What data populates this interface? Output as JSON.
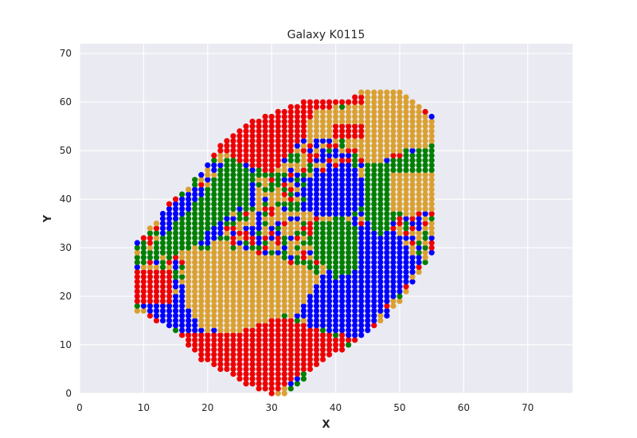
{
  "chart_data": {
    "type": "scatter",
    "title": "Galaxy K0115",
    "xlabel": "X",
    "ylabel": "Y",
    "xlim": [
      0,
      77
    ],
    "ylim": [
      0,
      72
    ],
    "xticks": [
      "0",
      "10",
      "20",
      "30",
      "40",
      "50",
      "60",
      "70"
    ],
    "yticks": [
      "0",
      "10",
      "20",
      "30",
      "40",
      "50",
      "60",
      "70"
    ],
    "grid": true,
    "marker": "circle",
    "colors": {
      "red": "#ee0000",
      "orange": "#daa030",
      "green": "#007f00",
      "blue": "#0000ff",
      "background": "#eaeaf2",
      "grid": "#ffffff"
    },
    "description_points": "Approximately 1,900 grid points (1-unit spacing) filling a rotated elongated galaxy outline; colored by region",
    "series": [
      {
        "color": "red",
        "regions": [
          {
            "poly": [
              [
                9,
                19
              ],
              [
                15,
                19
              ],
              [
                15,
                26
              ],
              [
                9,
                26
              ]
            ]
          },
          {
            "poly": [
              [
                16,
                13
              ],
              [
                25,
                13
              ],
              [
                32,
                16
              ],
              [
                36,
                14
              ],
              [
                40,
                12
              ],
              [
                43,
                11
              ],
              [
                41,
                9
              ],
              [
                36,
                5
              ],
              [
                30,
                0
              ],
              [
                24,
                3
              ],
              [
                18,
                7
              ],
              [
                16,
                10
              ]
            ]
          },
          {
            "poly": [
              [
                24,
                54
              ],
              [
                28,
                58
              ],
              [
                31,
                59
              ],
              [
                34,
                60
              ],
              [
                37,
                61
              ],
              [
                44,
                62
              ],
              [
                45,
                60
              ],
              [
                37,
                59
              ],
              [
                34,
                51
              ],
              [
                30,
                45
              ],
              [
                25,
                48
              ],
              [
                22,
                51
              ]
            ]
          },
          {
            "poly": [
              [
                40,
                56
              ],
              [
                45,
                56
              ],
              [
                45,
                53
              ],
              [
                40,
                53
              ]
            ]
          }
        ]
      },
      {
        "color": "orange",
        "regions": [
          {
            "poly": [
              [
                35,
                59
              ],
              [
                41,
                59
              ],
              [
                46,
                63
              ],
              [
                51,
                62
              ],
              [
                54,
                58
              ],
              [
                56,
                55
              ],
              [
                56,
                52
              ],
              [
                48,
                49
              ],
              [
                44,
                49
              ],
              [
                41,
                53
              ],
              [
                36,
                53
              ]
            ]
          },
          {
            "poly": [
              [
                49,
                46
              ],
              [
                56,
                46
              ],
              [
                56,
                38
              ],
              [
                49,
                38
              ]
            ]
          },
          {
            "poly": [
              [
                17,
                30
              ],
              [
                25,
                30
              ],
              [
                30,
                28
              ],
              [
                35,
                26
              ],
              [
                38,
                24
              ],
              [
                35,
                18
              ],
              [
                30,
                15
              ],
              [
                24,
                12
              ],
              [
                19,
                14
              ],
              [
                17,
                18
              ]
            ]
          }
        ]
      },
      {
        "color": "green",
        "regions": [
          {
            "poly": [
              [
                9,
                27
              ],
              [
                15,
                35
              ],
              [
                20,
                42
              ],
              [
                24,
                50
              ],
              [
                26,
                47
              ],
              [
                27,
                40
              ],
              [
                22,
                36
              ],
              [
                18,
                30
              ],
              [
                10,
                27
              ]
            ]
          },
          {
            "poly": [
              [
                48,
                48
              ],
              [
                56,
                52
              ],
              [
                56,
                38
              ],
              [
                50,
                37
              ],
              [
                47,
                32
              ],
              [
                44,
                38
              ],
              [
                45,
                45
              ]
            ]
          },
          {
            "poly": [
              [
                17,
                21
              ],
              [
                22,
                26
              ],
              [
                27,
                30
              ],
              [
                30,
                26
              ],
              [
                26,
                20
              ],
              [
                22,
                18
              ]
            ]
          },
          {
            "poly": [
              [
                36,
                34
              ],
              [
                41,
                37
              ],
              [
                44,
                33
              ],
              [
                44,
                26
              ],
              [
                40,
                24
              ],
              [
                37,
                28
              ]
            ]
          }
        ]
      },
      {
        "color": "blue",
        "regions": [
          {
            "poly": [
              [
                9,
                18
              ],
              [
                16,
                13
              ],
              [
                22,
                15
              ],
              [
                22,
                21
              ],
              [
                17,
                22
              ],
              [
                15,
                19
              ]
            ]
          },
          {
            "poly": [
              [
                13,
                38
              ],
              [
                19,
                42
              ],
              [
                24,
                38
              ],
              [
                22,
                32
              ],
              [
                17,
                30
              ],
              [
                13,
                33
              ]
            ]
          },
          {
            "poly": [
              [
                36,
                14
              ],
              [
                44,
                11
              ],
              [
                48,
                18
              ],
              [
                53,
                26
              ],
              [
                50,
                33
              ],
              [
                44,
                35
              ],
              [
                40,
                30
              ],
              [
                37,
                22
              ],
              [
                33,
                19
              ]
            ]
          },
          {
            "poly": [
              [
                35,
                44
              ],
              [
                42,
                48
              ],
              [
                45,
                43
              ],
              [
                44,
                38
              ],
              [
                40,
                36
              ],
              [
                36,
                38
              ]
            ]
          }
        ]
      }
    ]
  }
}
